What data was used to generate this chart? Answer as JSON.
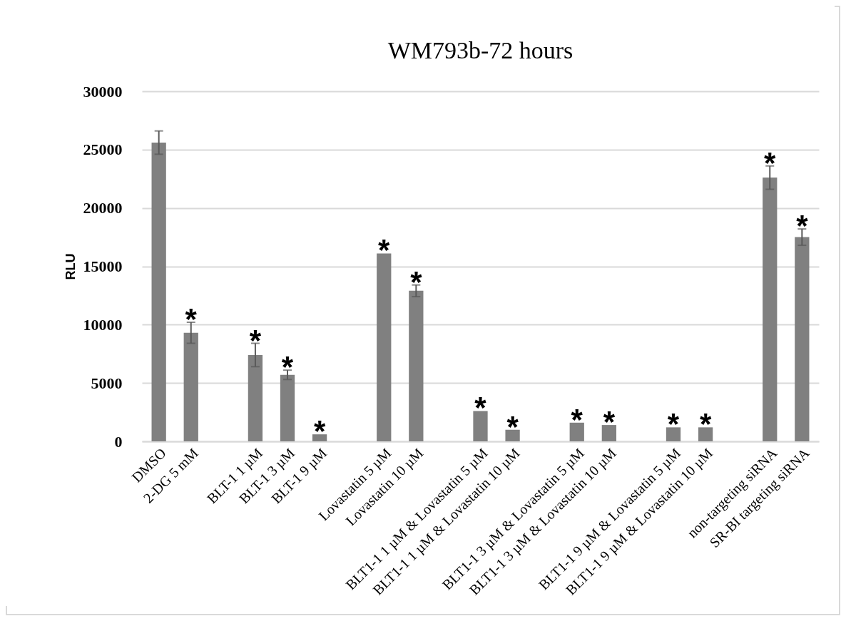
{
  "chart_data": {
    "type": "bar",
    "title": "WM793b-72  hours",
    "ylabel": "RLU",
    "categories": [
      "DMSO",
      "2-DG 5 mM",
      null,
      "BLT-1 1 µM",
      "BLT-1 3 µM",
      "BLT-1 9 µM",
      null,
      "Lovastatin 5 µM",
      "Lovastatin 10 µM",
      null,
      "BLT1-1 1 µM & Lovastatin 5 µM",
      "BLT1-1 1 µM & Lovastatin 10 µM",
      null,
      "BLT1-1 3 µM & Lovastatin 5 µM",
      "BLT1-1 3 µM & Lovastatin 10 µM",
      null,
      "BLT1-1 9 µM & Lovastatin 5 µM",
      "BLT1-1 9 µM & Lovastatin 10 µM",
      null,
      "non-targeting siRNA",
      "SR-BI targeting siRNA"
    ],
    "values": [
      25600,
      9300,
      null,
      7400,
      5700,
      600,
      null,
      16100,
      12900,
      null,
      2600,
      1000,
      null,
      1600,
      1400,
      null,
      1200,
      1200,
      null,
      22600,
      17500
    ],
    "errors": [
      1000,
      900,
      null,
      1000,
      400,
      null,
      null,
      null,
      500,
      null,
      null,
      null,
      null,
      null,
      null,
      null,
      null,
      null,
      null,
      1000,
      700
    ],
    "color": "#808080",
    "ylim": [
      0,
      30000
    ],
    "yticks": [
      0,
      5000,
      10000,
      15000,
      20000,
      25000,
      30000
    ],
    "grid": "y",
    "annotations": [
      {
        "text": "*",
        "x": "2-DG 5 mM",
        "y": 10200
      },
      {
        "text": "*",
        "x": "BLT-1 1 µM",
        "y": 8400
      },
      {
        "text": "*",
        "x": "BLT-1 3 µM",
        "y": 6100
      },
      {
        "text": "*",
        "x": "BLT-1 9 µM",
        "y": 600
      },
      {
        "text": "*",
        "x": "Lovastatin 5 µM",
        "y": 16100
      },
      {
        "text": "*",
        "x": "Lovastatin 10 µM",
        "y": 13400
      },
      {
        "text": "*",
        "x": "BLT1-1 1 µM & Lovastatin 5 µM",
        "y": 2600
      },
      {
        "text": "*",
        "x": "BLT1-1 1 µM & Lovastatin 10 µM",
        "y": 1000
      },
      {
        "text": "*",
        "x": "BLT1-1 3 µM & Lovastatin 5 µM",
        "y": 1600
      },
      {
        "text": "*",
        "x": "BLT1-1 3 µM & Lovastatin 10 µM",
        "y": 1400
      },
      {
        "text": "*",
        "x": "BLT1-1 9 µM & Lovastatin 5 µM",
        "y": 1200
      },
      {
        "text": "*",
        "x": "BLT1-1 9 µM & Lovastatin 10 µM",
        "y": 1200
      },
      {
        "text": "*",
        "x": "non-targeting siRNA",
        "y": 23600
      },
      {
        "text": "*",
        "x": "SR-BI targeting siRNA",
        "y": 18200
      }
    ]
  }
}
